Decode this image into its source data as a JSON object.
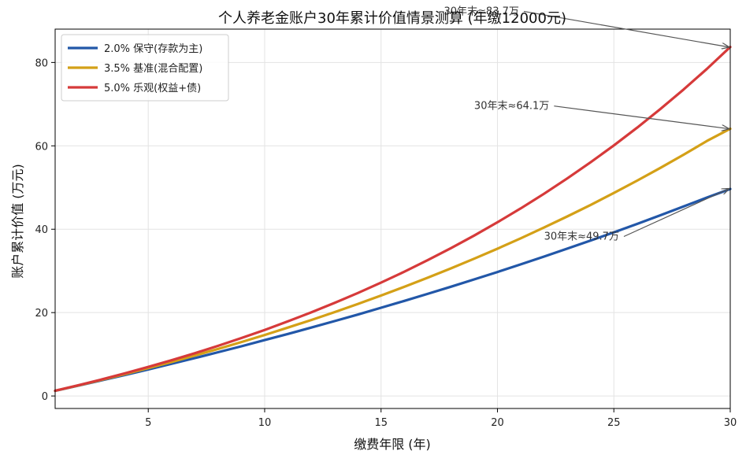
{
  "chart_data": {
    "type": "line",
    "title": "个人养老金账户30年累计价值情景测算 (年缴12000元)",
    "xlabel": "缴费年限 (年)",
    "ylabel": "账户累计价值 (万元)",
    "xlim": [
      1,
      30
    ],
    "ylim": [
      -3,
      88
    ],
    "xticks": [
      5,
      10,
      15,
      20,
      25,
      30
    ],
    "yticks": [
      0,
      20,
      40,
      60,
      80
    ],
    "grid": true,
    "legend_position": "upper-left",
    "annual_contribution_yuan": 12000,
    "x": [
      1,
      2,
      3,
      4,
      5,
      6,
      7,
      8,
      9,
      10,
      11,
      12,
      13,
      14,
      15,
      16,
      17,
      18,
      19,
      20,
      21,
      22,
      23,
      24,
      25,
      26,
      27,
      28,
      29,
      30
    ],
    "series": [
      {
        "name": "2.0% 保守(存款为主)",
        "rate": 0.02,
        "color": "#2257a8",
        "values": [
          1.22,
          2.48,
          3.75,
          5.05,
          6.37,
          7.72,
          9.09,
          10.5,
          11.92,
          13.4,
          14.88,
          16.41,
          17.95,
          19.53,
          21.17,
          22.81,
          24.49,
          26.21,
          27.97,
          29.74,
          31.57,
          33.44,
          35.35,
          37.29,
          39.25,
          41.27,
          43.35,
          45.46,
          47.59,
          49.65
        ]
      },
      {
        "name": "3.5% 基准(混合配置)",
        "rate": 0.035,
        "color": "#d4a017",
        "values": [
          1.24,
          2.53,
          3.87,
          5.25,
          6.68,
          8.16,
          9.7,
          11.29,
          12.93,
          14.64,
          16.4,
          18.22,
          20.11,
          22.07,
          24.09,
          26.18,
          28.35,
          30.6,
          32.92,
          35.33,
          37.82,
          40.4,
          43.07,
          45.83,
          48.69,
          51.65,
          54.72,
          57.89,
          61.18,
          64.1
        ]
      },
      {
        "name": "5.0% 乐观(权益+债)",
        "rate": 0.05,
        "color": "#d63a3a",
        "values": [
          1.26,
          2.58,
          3.97,
          5.43,
          6.96,
          8.57,
          10.26,
          12.03,
          13.89,
          15.85,
          17.9,
          20.06,
          22.32,
          24.7,
          27.19,
          29.81,
          32.56,
          35.45,
          38.48,
          41.66,
          45.0,
          48.51,
          52.18,
          56.05,
          60.1,
          64.36,
          68.83,
          73.53,
          78.46,
          83.71
        ]
      }
    ],
    "annotations": [
      {
        "text": "30年末≈83.7万",
        "series": 2,
        "point": [
          30,
          83.7
        ],
        "text_at": [
          17.7,
          91.5
        ]
      },
      {
        "text": "30年末≈64.1万",
        "series": 1,
        "point": [
          30,
          64.1
        ],
        "text_at": [
          19.0,
          68.8
        ]
      },
      {
        "text": "30年末≈49.7万",
        "series": 0,
        "point": [
          30,
          49.7
        ],
        "text_at": [
          22.0,
          37.5
        ]
      }
    ],
    "colors": {
      "background": "#ffffff",
      "grid": "#e3e3e3",
      "axis": "#000000",
      "annotation_arrow": "#555555"
    }
  }
}
